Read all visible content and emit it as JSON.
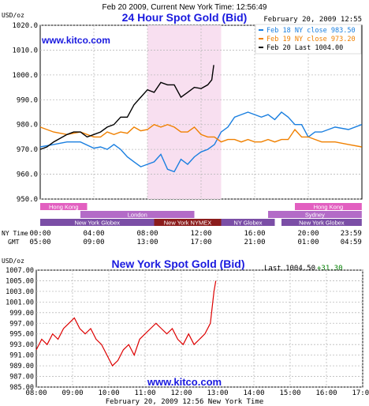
{
  "header": {
    "top_line": "Feb 20 2009, Current New York Time: 12:56:49",
    "title": "24 Hour Spot Gold (Bid)",
    "timestamp": "February 20, 2009 12:55",
    "watermark": "www.kitco.com"
  },
  "bottom": {
    "title": "New York Spot Gold (Bid)",
    "last_label": "Last",
    "last_value": "1004.50",
    "change": "+31.30",
    "watermark": "www.kitco.com",
    "xlabel": "February 20, 2009 12:56 New York Time"
  },
  "colors": {
    "blue": "#1a7fe0",
    "orange": "#f08000",
    "black": "#000000",
    "red": "#dd0000",
    "green": "#008000",
    "title_blue": "#1a1adf",
    "shade": "#f8dff0"
  },
  "chart_data": [
    {
      "type": "line",
      "title": "24 Hour Spot Gold (Bid)",
      "ylabel": "USD/oz",
      "ylim": [
        950,
        1020
      ],
      "yticks": [
        "1020.0",
        "1010.0",
        "1000.0",
        "990.0",
        "980.0",
        "970.0",
        "960.0",
        "950.0"
      ],
      "x_ny_label": "NY Time",
      "x_gmt_label": "GMT",
      "x_ny_ticks": [
        "00:00",
        "04:00",
        "08:00",
        "12:00",
        "16:00",
        "20:00",
        "23:59"
      ],
      "x_gmt_ticks": [
        "05:00",
        "09:00",
        "13:00",
        "17:00",
        "21:00",
        "01:00",
        "04:59"
      ],
      "legend": [
        {
          "label": "Feb 18 NY close 983.50",
          "color": "#1a7fe0"
        },
        {
          "label": "Feb 19 NY close 973.20",
          "color": "#f08000"
        },
        {
          "label": "Feb 20 Last 1004.00",
          "color": "#000000"
        }
      ],
      "series": [
        {
          "name": "Feb 18",
          "color": "#1a7fe0",
          "x": [
            0,
            1,
            2,
            3,
            4,
            4.5,
            5,
            5.5,
            6,
            6.5,
            7,
            7.5,
            8,
            8.5,
            9,
            9.5,
            10,
            10.5,
            11,
            11.5,
            12,
            12.5,
            13,
            13.5,
            14,
            14.5,
            15,
            15.5,
            16,
            16.5,
            17,
            17.5,
            18,
            18.5,
            19,
            19.5,
            20,
            20.5,
            21,
            22,
            23,
            23.99
          ],
          "y": [
            971,
            972,
            973,
            973,
            970.5,
            971,
            970,
            972,
            970,
            967,
            965,
            963,
            964,
            965,
            968,
            962,
            961,
            966,
            964,
            967,
            969,
            970,
            972,
            977,
            979,
            983,
            984,
            985,
            984,
            983,
            984,
            982,
            985,
            983,
            980,
            980,
            975,
            977,
            977,
            979,
            978,
            980
          ]
        },
        {
          "name": "Feb 19",
          "color": "#f08000",
          "x": [
            0,
            1,
            2,
            3,
            4,
            4.5,
            5,
            5.5,
            6,
            6.5,
            7,
            7.5,
            8,
            8.5,
            9,
            9.5,
            10,
            10.5,
            11,
            11.5,
            12,
            12.5,
            13,
            13.5,
            14,
            14.5,
            15,
            15.5,
            16,
            16.5,
            17,
            17.5,
            18,
            18.5,
            19,
            19.5,
            20,
            21,
            22,
            23,
            23.99
          ],
          "y": [
            979,
            977,
            976,
            977,
            975,
            975,
            977,
            976,
            977,
            976.5,
            979,
            977.5,
            978,
            980,
            979,
            980,
            979,
            977,
            977,
            979,
            976,
            975,
            975,
            973,
            974,
            974,
            973,
            974,
            973,
            973,
            974,
            973,
            974,
            974,
            978,
            975,
            975,
            973,
            973,
            972,
            971
          ]
        },
        {
          "name": "Feb 20",
          "color": "#000000",
          "x": [
            0,
            0.5,
            1,
            1.5,
            2,
            2.5,
            3,
            3.5,
            4,
            4.5,
            5,
            5.5,
            6,
            6.5,
            7,
            7.5,
            8,
            8.5,
            9,
            9.5,
            10,
            10.5,
            11,
            11.5,
            12,
            12.5,
            12.8,
            12.95
          ],
          "y": [
            970,
            971,
            973,
            974.5,
            976,
            977,
            977,
            975,
            976,
            977,
            979,
            980,
            983,
            983,
            988,
            991,
            994,
            993,
            997,
            996,
            996,
            991,
            993,
            995,
            994.5,
            996,
            998,
            1004
          ]
        }
      ],
      "markets": [
        {
          "name": "Hong Kong",
          "row": 0,
          "start": 0,
          "end": 3.5,
          "color": "#e25fc0"
        },
        {
          "name": "Hong Kong",
          "row": 0,
          "start": 19,
          "end": 23.99,
          "color": "#e25fc0"
        },
        {
          "name": "London",
          "row": 1,
          "start": 3,
          "end": 11.5,
          "color": "#b36bc7"
        },
        {
          "name": "Sydney",
          "row": 1,
          "start": 17,
          "end": 23.99,
          "color": "#b36bc7"
        },
        {
          "name": "New York Globex",
          "row": 2,
          "start": 0,
          "end": 8.5,
          "color": "#7b4ea6"
        },
        {
          "name": "New York NYMEX",
          "row": 2,
          "start": 8.5,
          "end": 13.5,
          "color": "#8b1c1c"
        },
        {
          "name": "NY Globex",
          "row": 2,
          "start": 13.5,
          "end": 17.5,
          "color": "#7b4ea6"
        },
        {
          "name": "New York Globex",
          "row": 2,
          "start": 18,
          "end": 23.99,
          "color": "#7b4ea6"
        }
      ]
    },
    {
      "type": "line",
      "title": "New York Spot Gold (Bid)",
      "ylabel": "USD/oz",
      "ylim": [
        985,
        1007
      ],
      "yticks": [
        "1007.00",
        "1005.00",
        "1003.00",
        "1001.00",
        "999.00",
        "997.00",
        "995.00",
        "993.00",
        "991.00",
        "989.00",
        "987.00",
        "985.00"
      ],
      "xticks": [
        "08:00",
        "09:00",
        "10:00",
        "11:00",
        "12:00",
        "13:00",
        "14:00",
        "15:00",
        "16:00",
        "17:00"
      ],
      "xlabel": "February 20, 2009 12:56 New York Time",
      "series": [
        {
          "name": "",
          "color": "#dd0000",
          "x": [
            8,
            8.15,
            8.3,
            8.45,
            8.6,
            8.75,
            8.9,
            9.05,
            9.2,
            9.35,
            9.5,
            9.65,
            9.8,
            9.95,
            10.1,
            10.25,
            10.4,
            10.55,
            10.7,
            10.85,
            11,
            11.15,
            11.3,
            11.45,
            11.6,
            11.75,
            11.9,
            12.05,
            12.2,
            12.35,
            12.5,
            12.65,
            12.8,
            12.9,
            12.95
          ],
          "y": [
            992,
            994,
            993,
            995,
            994,
            996,
            997,
            998,
            996,
            995,
            996,
            994,
            993,
            991,
            989,
            990,
            992,
            993,
            991,
            994,
            995,
            996,
            997,
            996,
            995,
            996,
            994,
            993,
            995,
            993,
            994,
            995,
            997,
            1003,
            1005
          ]
        }
      ]
    }
  ]
}
